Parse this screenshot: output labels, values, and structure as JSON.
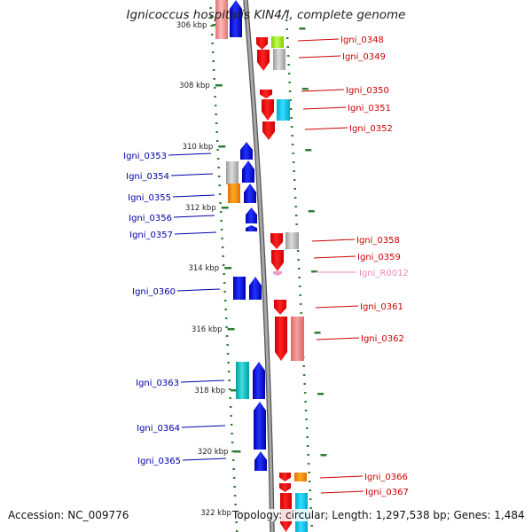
{
  "title": "Ignicoccus hospitalis KIN4/I, complete genome",
  "footer": {
    "accession": "Accession: NC_009776",
    "summary": "Topology: circular; Length: 1,297,538 bp; Genes: 1,484"
  },
  "colors": {
    "forward_label": "#cc0000",
    "reverse_label": "#0000aa",
    "rna_label": "#ee88bb",
    "backbone": "#999999",
    "ticks": "#2e7d32"
  },
  "ticks": [
    "306 kbp",
    "308 kbp",
    "310 kbp",
    "312 kbp",
    "314 kbp",
    "316 kbp",
    "318 kbp",
    "320 kbp",
    "322 kbp"
  ],
  "gene_labels": {
    "forward": [
      "Igni_0348",
      "Igni_0349",
      "Igni_0350",
      "Igni_0351",
      "Igni_0352",
      "Igni_0358",
      "Igni_0359",
      "Igni_0361",
      "Igni_0362",
      "Igni_0366",
      "Igni_0367"
    ],
    "reverse": [
      "Igni_0353",
      "Igni_0354",
      "Igni_0355",
      "Igni_0356",
      "Igni_0357",
      "Igni_0360",
      "Igni_0363",
      "Igni_0364",
      "Igni_0365"
    ],
    "rna": [
      "Igni_R0012"
    ]
  }
}
